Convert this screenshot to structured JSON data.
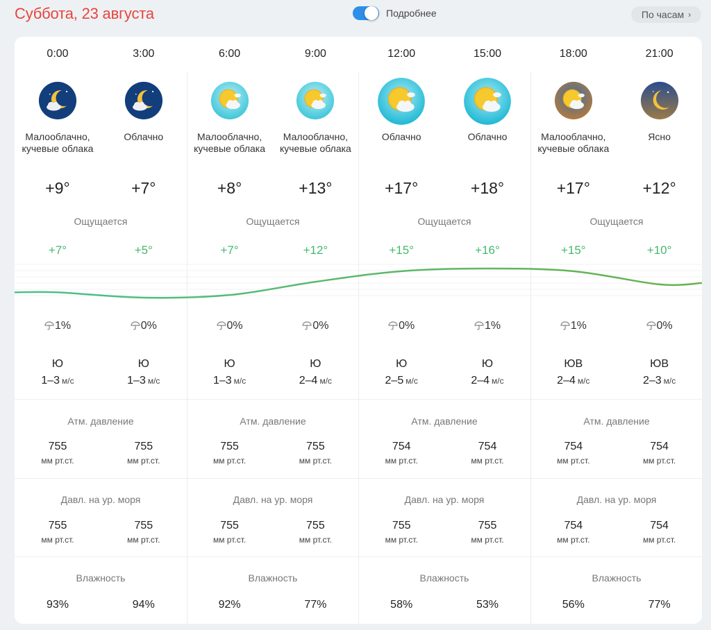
{
  "header": {
    "date_title": "Суббота, 23 августа",
    "toggle_label": "Подробнее",
    "toggle_on": true,
    "hourly_button": "По часам",
    "accent_color": "#e8453c"
  },
  "labels": {
    "feels_like": "Ощущается",
    "atm_pressure": "Атм. давление",
    "sea_pressure": "Давл. на ур. моря",
    "humidity": "Влажность",
    "pressure_unit": "мм рт.ст.",
    "wind_unit": "м/с"
  },
  "columns": [
    {
      "time": "0:00",
      "icon": "night-cloud-moon-icon",
      "condition": "Малооблачно, кучевые облака",
      "temp": "+9°",
      "feels": "+7°",
      "precip": "1%",
      "wind_dir": "Ю",
      "wind_speed": "1–3",
      "pressure": "755",
      "sea_pressure": "755",
      "humidity": "93%"
    },
    {
      "time": "3:00",
      "icon": "night-cloud-moon-icon",
      "condition": "Облачно",
      "temp": "+7°",
      "feels": "+5°",
      "precip": "0%",
      "wind_dir": "Ю",
      "wind_speed": "1–3",
      "pressure": "755",
      "sea_pressure": "755",
      "humidity": "94%"
    },
    {
      "time": "6:00",
      "icon": "morning-sun-cloud-icon",
      "condition": "Малооблачно, кучевые облака",
      "temp": "+8°",
      "feels": "+7°",
      "precip": "0%",
      "wind_dir": "Ю",
      "wind_speed": "1–3",
      "pressure": "755",
      "sea_pressure": "755",
      "humidity": "92%"
    },
    {
      "time": "9:00",
      "icon": "morning-sun-cloud-icon",
      "condition": "Малооблачно, кучевые облака",
      "temp": "+13°",
      "feels": "+12°",
      "precip": "0%",
      "wind_dir": "Ю",
      "wind_speed": "2–4",
      "pressure": "755",
      "sea_pressure": "755",
      "humidity": "77%"
    },
    {
      "time": "12:00",
      "icon": "day-sun-cloud-icon",
      "condition": "Облачно",
      "temp": "+17°",
      "feels": "+15°",
      "precip": "0%",
      "wind_dir": "Ю",
      "wind_speed": "2–5",
      "pressure": "754",
      "sea_pressure": "755",
      "humidity": "58%"
    },
    {
      "time": "15:00",
      "icon": "day-sun-cloud-icon",
      "condition": "Облачно",
      "temp": "+18°",
      "feels": "+16°",
      "precip": "1%",
      "wind_dir": "Ю",
      "wind_speed": "2–4",
      "pressure": "754",
      "sea_pressure": "755",
      "humidity": "53%"
    },
    {
      "time": "18:00",
      "icon": "evening-sun-cloud-icon",
      "condition": "Малооблачно, кучевые облака",
      "temp": "+17°",
      "feels": "+15°",
      "precip": "1%",
      "wind_dir": "ЮВ",
      "wind_speed": "2–4",
      "pressure": "754",
      "sea_pressure": "754",
      "humidity": "56%"
    },
    {
      "time": "21:00",
      "icon": "night-moon-icon",
      "condition": "Ясно",
      "temp": "+12°",
      "feels": "+10°",
      "precip": "0%",
      "wind_dir": "ЮВ",
      "wind_speed": "2–3",
      "pressure": "754",
      "sea_pressure": "754",
      "humidity": "77%"
    }
  ],
  "chart_data": {
    "type": "line",
    "categories": [
      "0:00",
      "3:00",
      "6:00",
      "9:00",
      "12:00",
      "15:00",
      "18:00",
      "21:00"
    ],
    "series": [
      {
        "values": [
          9,
          7,
          8,
          13,
          17,
          18,
          17,
          12
        ]
      }
    ],
    "colors": [
      "#4bc08c",
      "#6ab04c"
    ],
    "grid": false
  }
}
